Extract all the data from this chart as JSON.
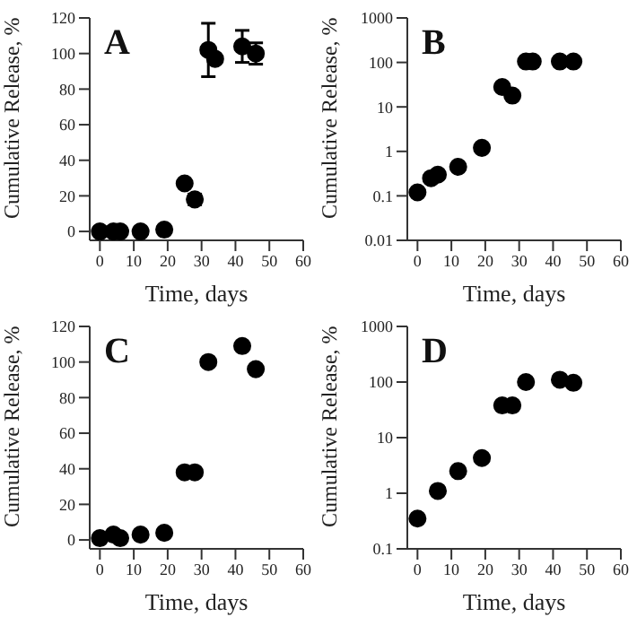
{
  "chart_data": [
    {
      "type": "scatter",
      "annotations": [
        "A"
      ],
      "xlabel": "Time, days",
      "ylabel": "Cumulative Release, %",
      "xlim": [
        -3,
        60
      ],
      "xticks": [
        0,
        10,
        20,
        30,
        40,
        50,
        60
      ],
      "ylim": [
        -5,
        120
      ],
      "yticks": [
        0,
        20,
        40,
        60,
        80,
        100,
        120
      ],
      "marker": "circle",
      "series": [
        {
          "color": "#000000",
          "x": [
            0,
            4,
            6,
            12,
            19,
            25,
            28,
            32,
            34,
            42,
            46
          ],
          "values": [
            0,
            0,
            0,
            0,
            1,
            27,
            18,
            102,
            97,
            104,
            100
          ],
          "errors": [
            null,
            null,
            null,
            null,
            null,
            null,
            3,
            15,
            null,
            9,
            6
          ]
        }
      ]
    },
    {
      "type": "scatter",
      "annotations": [
        "B"
      ],
      "xlabel": "Time, days",
      "ylabel": "Cumulative Release, %",
      "xlim": [
        -3,
        60
      ],
      "xticks": [
        0,
        10,
        20,
        30,
        40,
        50,
        60
      ],
      "ylim": [
        0.01,
        1000
      ],
      "yticks": [
        0.01,
        0.1,
        1,
        10,
        100,
        1000
      ],
      "log": "y",
      "marker": "circle",
      "series": [
        {
          "color": "#000000",
          "x": [
            0,
            4,
            6,
            12,
            19,
            25,
            28,
            32,
            34,
            42,
            46
          ],
          "values": [
            0.12,
            0.25,
            0.3,
            0.45,
            1.2,
            28,
            18,
            105,
            105,
            105,
            105
          ]
        }
      ]
    },
    {
      "type": "scatter",
      "annotations": [
        "C"
      ],
      "xlabel": "Time, days",
      "ylabel": "Cumulative Release, %",
      "xlim": [
        -3,
        60
      ],
      "xticks": [
        0,
        10,
        20,
        30,
        40,
        50,
        60
      ],
      "ylim": [
        -5,
        120
      ],
      "yticks": [
        0,
        20,
        40,
        60,
        80,
        100,
        120
      ],
      "marker": "circle",
      "series": [
        {
          "color": "#000000",
          "x": [
            0,
            4,
            6,
            12,
            19,
            25,
            28,
            32,
            42,
            46
          ],
          "values": [
            1,
            3,
            1,
            3,
            4,
            38,
            38,
            100,
            109,
            96
          ]
        }
      ]
    },
    {
      "type": "scatter",
      "annotations": [
        "D"
      ],
      "xlabel": "Time, days",
      "ylabel": "Cumulative Release, %",
      "xlim": [
        -3,
        60
      ],
      "xticks": [
        0,
        10,
        20,
        30,
        40,
        50,
        60
      ],
      "ylim": [
        0.1,
        1000
      ],
      "yticks": [
        0.1,
        1,
        10,
        100,
        1000
      ],
      "log": "y",
      "marker": "circle",
      "series": [
        {
          "color": "#000000",
          "x": [
            0,
            6,
            12,
            19,
            25,
            28,
            32,
            42,
            46
          ],
          "values": [
            0.35,
            1.1,
            2.5,
            4.3,
            38,
            38,
            100,
            110,
            97
          ]
        }
      ]
    }
  ]
}
